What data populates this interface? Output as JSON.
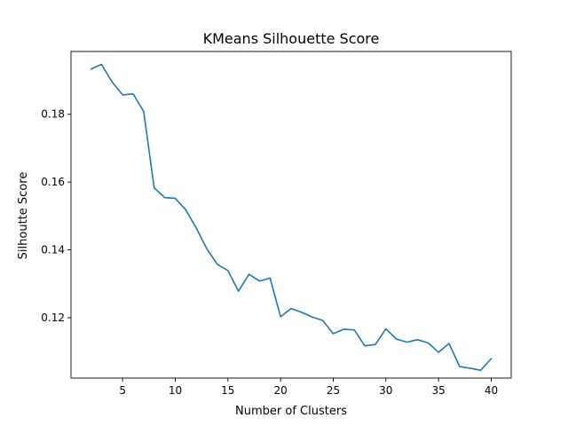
{
  "chart_data": {
    "type": "line",
    "title": "KMeans Silhouette Score",
    "xlabel": "Number of Clusters",
    "ylabel": "Silhoutte Score",
    "xlim": [
      0.1,
      41.9
    ],
    "ylim": [
      0.1022,
      0.1985
    ],
    "xticks": [
      5,
      10,
      15,
      20,
      25,
      30,
      35,
      40
    ],
    "xtick_labels": [
      "5",
      "10",
      "15",
      "20",
      "25",
      "30",
      "35",
      "40"
    ],
    "yticks": [
      0.12,
      0.14,
      0.16,
      0.18
    ],
    "ytick_labels": [
      "0.12",
      "0.14",
      "0.16",
      "0.18"
    ],
    "grid": false,
    "series": [
      {
        "color": "#1f77b4",
        "x": [
          2,
          3,
          4,
          5,
          6,
          7,
          8,
          9,
          10,
          11,
          12,
          13,
          14,
          15,
          16,
          17,
          18,
          19,
          20,
          21,
          22,
          23,
          24,
          25,
          26,
          27,
          28,
          29,
          30,
          31,
          32,
          33,
          34,
          35,
          36,
          37,
          38,
          39,
          40
        ],
        "y": [
          0.1933,
          0.1947,
          0.1895,
          0.1857,
          0.186,
          0.1808,
          0.1583,
          0.1554,
          0.1552,
          0.1518,
          0.1464,
          0.1403,
          0.1357,
          0.1339,
          0.1278,
          0.1328,
          0.1308,
          0.1317,
          0.1203,
          0.1227,
          0.1216,
          0.1202,
          0.1192,
          0.1153,
          0.1166,
          0.1164,
          0.1117,
          0.1121,
          0.1167,
          0.1137,
          0.1128,
          0.1135,
          0.1126,
          0.1098,
          0.1124,
          0.1056,
          0.1051,
          0.1045,
          0.1079
        ]
      }
    ]
  }
}
